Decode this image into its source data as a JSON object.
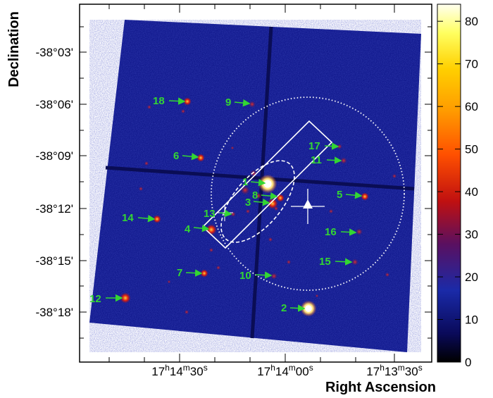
{
  "figure": {
    "axis_x_title": "Right Ascension",
    "axis_y_title": "Declination",
    "ra_ticks": [
      {
        "h": "17",
        "m": "14",
        "s": "30"
      },
      {
        "h": "17",
        "m": "14",
        "s": "00"
      },
      {
        "h": "17",
        "m": "13",
        "s": "30"
      }
    ],
    "dec_ticks": [
      "-38°03'",
      "-38°06'",
      "-38°09'",
      "-38°12'",
      "-38°15'",
      "-38°18'"
    ],
    "colorbar": {
      "ticks": [
        "0",
        "10",
        "20",
        "30",
        "40",
        "50",
        "60",
        "70",
        "80"
      ],
      "min": 0,
      "max": 84,
      "colors": [
        "#000000",
        "#0a0a5a",
        "#1a2aa8",
        "#5a1060",
        "#c01010",
        "#ff5000",
        "#ff9a00",
        "#ffd000",
        "#ffff60",
        "#fffff0"
      ]
    },
    "sources": [
      {
        "id": "1"
      },
      {
        "id": "2"
      },
      {
        "id": "3"
      },
      {
        "id": "4"
      },
      {
        "id": "5"
      },
      {
        "id": "6"
      },
      {
        "id": "7"
      },
      {
        "id": "8"
      },
      {
        "id": "9"
      },
      {
        "id": "10"
      },
      {
        "id": "11"
      },
      {
        "id": "12"
      },
      {
        "id": "13"
      },
      {
        "id": "14"
      },
      {
        "id": "15"
      },
      {
        "id": "16"
      },
      {
        "id": "17"
      },
      {
        "id": "18"
      }
    ],
    "colors": {
      "field_background": "#121a8e",
      "label": "#33d633",
      "overlay": "#ffffff"
    }
  }
}
